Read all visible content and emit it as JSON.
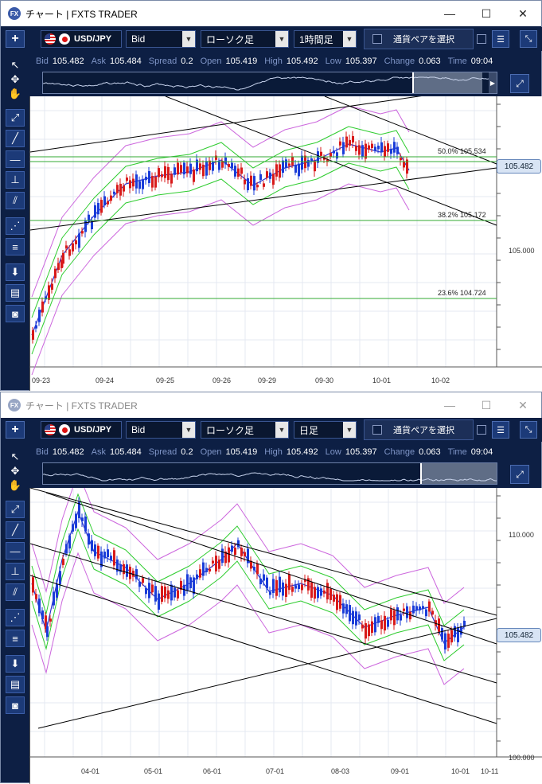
{
  "windows": [
    {
      "title": "チャート | FXTS TRADER",
      "active": true,
      "logo": "FX",
      "pair": "USD/JPY",
      "price_type": "Bid",
      "chart_style": "ローソク足",
      "timeframe": "1時間足",
      "pair_select_label": "通貨ペアを選択",
      "quote": {
        "bid_label": "Bid",
        "bid": "105.482",
        "ask_label": "Ask",
        "ask": "105.484",
        "spread_label": "Spread",
        "spread": "0.2",
        "open_label": "Open",
        "open": "105.419",
        "high_label": "High",
        "high": "105.492",
        "low_label": "Low",
        "low": "105.397",
        "change_label": "Change",
        "change": "0.063",
        "time_label": "Time",
        "time": "09:04"
      },
      "current_price_tag": "105.482",
      "y_labels": [
        "105.000"
      ],
      "fib_labels": [
        {
          "pct": "50.0%",
          "value": "105.534"
        },
        {
          "pct": "38.2%",
          "value": "105.172"
        },
        {
          "pct": "23.6%",
          "value": "104.724"
        }
      ],
      "x_labels": [
        "09-23",
        "09-24",
        "09-25",
        "09-26",
        "09-29",
        "09-30",
        "10-01",
        "10-02"
      ]
    },
    {
      "title": "チャート | FXTS TRADER",
      "active": false,
      "logo": "FX",
      "pair": "USD/JPY",
      "price_type": "Bid",
      "chart_style": "ローソク足",
      "timeframe": "日足",
      "pair_select_label": "通貨ペアを選択",
      "quote": {
        "bid_label": "Bid",
        "bid": "105.482",
        "ask_label": "Ask",
        "ask": "105.484",
        "spread_label": "Spread",
        "spread": "0.2",
        "open_label": "Open",
        "open": "105.419",
        "high_label": "High",
        "high": "105.492",
        "low_label": "Low",
        "low": "105.397",
        "change_label": "Change",
        "change": "0.063",
        "time_label": "Time",
        "time": "09:04"
      },
      "current_price_tag": "105.482",
      "y_labels": [
        "110.000",
        "100.000"
      ],
      "x_labels": [
        "04-01",
        "05-01",
        "06-01",
        "07-01",
        "08-03",
        "09-01",
        "10-01",
        "10-11"
      ]
    }
  ],
  "window_controls": {
    "minimize": "—",
    "maximize": "☐",
    "close": "✕"
  },
  "icons": {
    "sidebar": [
      "cursor-icon",
      "crosshair-icon",
      "hand-icon",
      "trendline-icon",
      "line-icon",
      "horizontal-line-icon",
      "horizontal-ray-icon",
      "channel-icon",
      "fibonacci-fan-icon",
      "fibonacci-retracement-icon",
      "download-icon",
      "list-icon",
      "camera-icon"
    ]
  },
  "colors": {
    "frame": "#0d1f44",
    "bull_candle": "#1a3cd8",
    "bear_candle": "#d81a1a",
    "ma_blue": "#2a35d0",
    "bollinger_green": "#2ecc2e",
    "bollinger_purple": "#cc66dd",
    "fib_line": "#33aa33"
  }
}
